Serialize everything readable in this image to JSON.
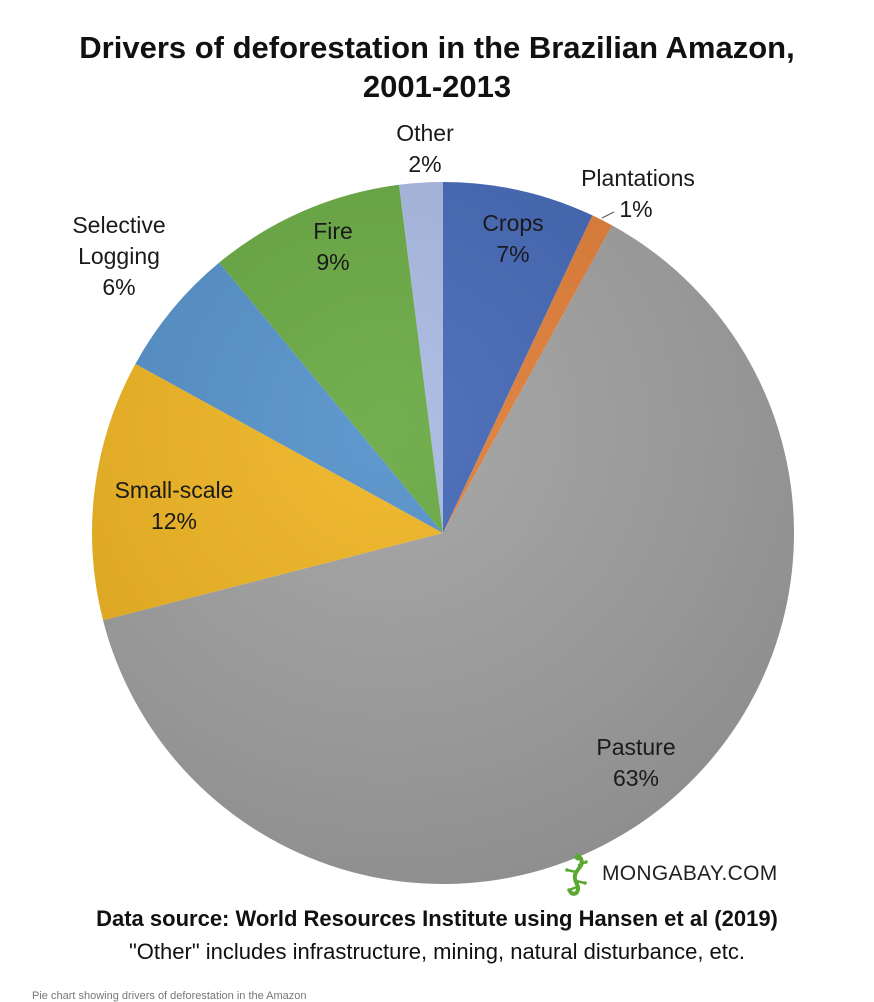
{
  "chart_data": {
    "type": "pie",
    "title": "Drivers of deforestation in the Brazilian Amazon,",
    "title_line2": "2001-2013",
    "slices": [
      {
        "label": "Crops",
        "value": 7,
        "display": "7%",
        "color": "#3f63b4"
      },
      {
        "label": "Plantations",
        "value": 1,
        "display": "1%",
        "color": "#e07b33"
      },
      {
        "label": "Pasture",
        "value": 63,
        "display": "63%",
        "color": "#9e9e9e"
      },
      {
        "label": "Small-scale",
        "value": 12,
        "display": "12%",
        "color": "#eeb21c"
      },
      {
        "label": "Selective Logging",
        "label_lines": [
          "Selective",
          "Logging"
        ],
        "value": 6,
        "display": "6%",
        "color": "#4f8ec8"
      },
      {
        "label": "Fire",
        "value": 9,
        "display": "9%",
        "color": "#64a63d"
      },
      {
        "label": "Other",
        "value": 2,
        "display": "2%",
        "color": "#a6b7e0"
      }
    ]
  },
  "source": {
    "line1": "Data source: World Resources Institute using Hansen et al  (2019)",
    "line2": "\"Other\" includes infrastructure, mining, natural disturbance, etc."
  },
  "watermark": {
    "text": "MONGABAY.COM",
    "icon": "gecko-logo-icon"
  },
  "caption": "Pie chart showing drivers of deforestation in the Amazon"
}
